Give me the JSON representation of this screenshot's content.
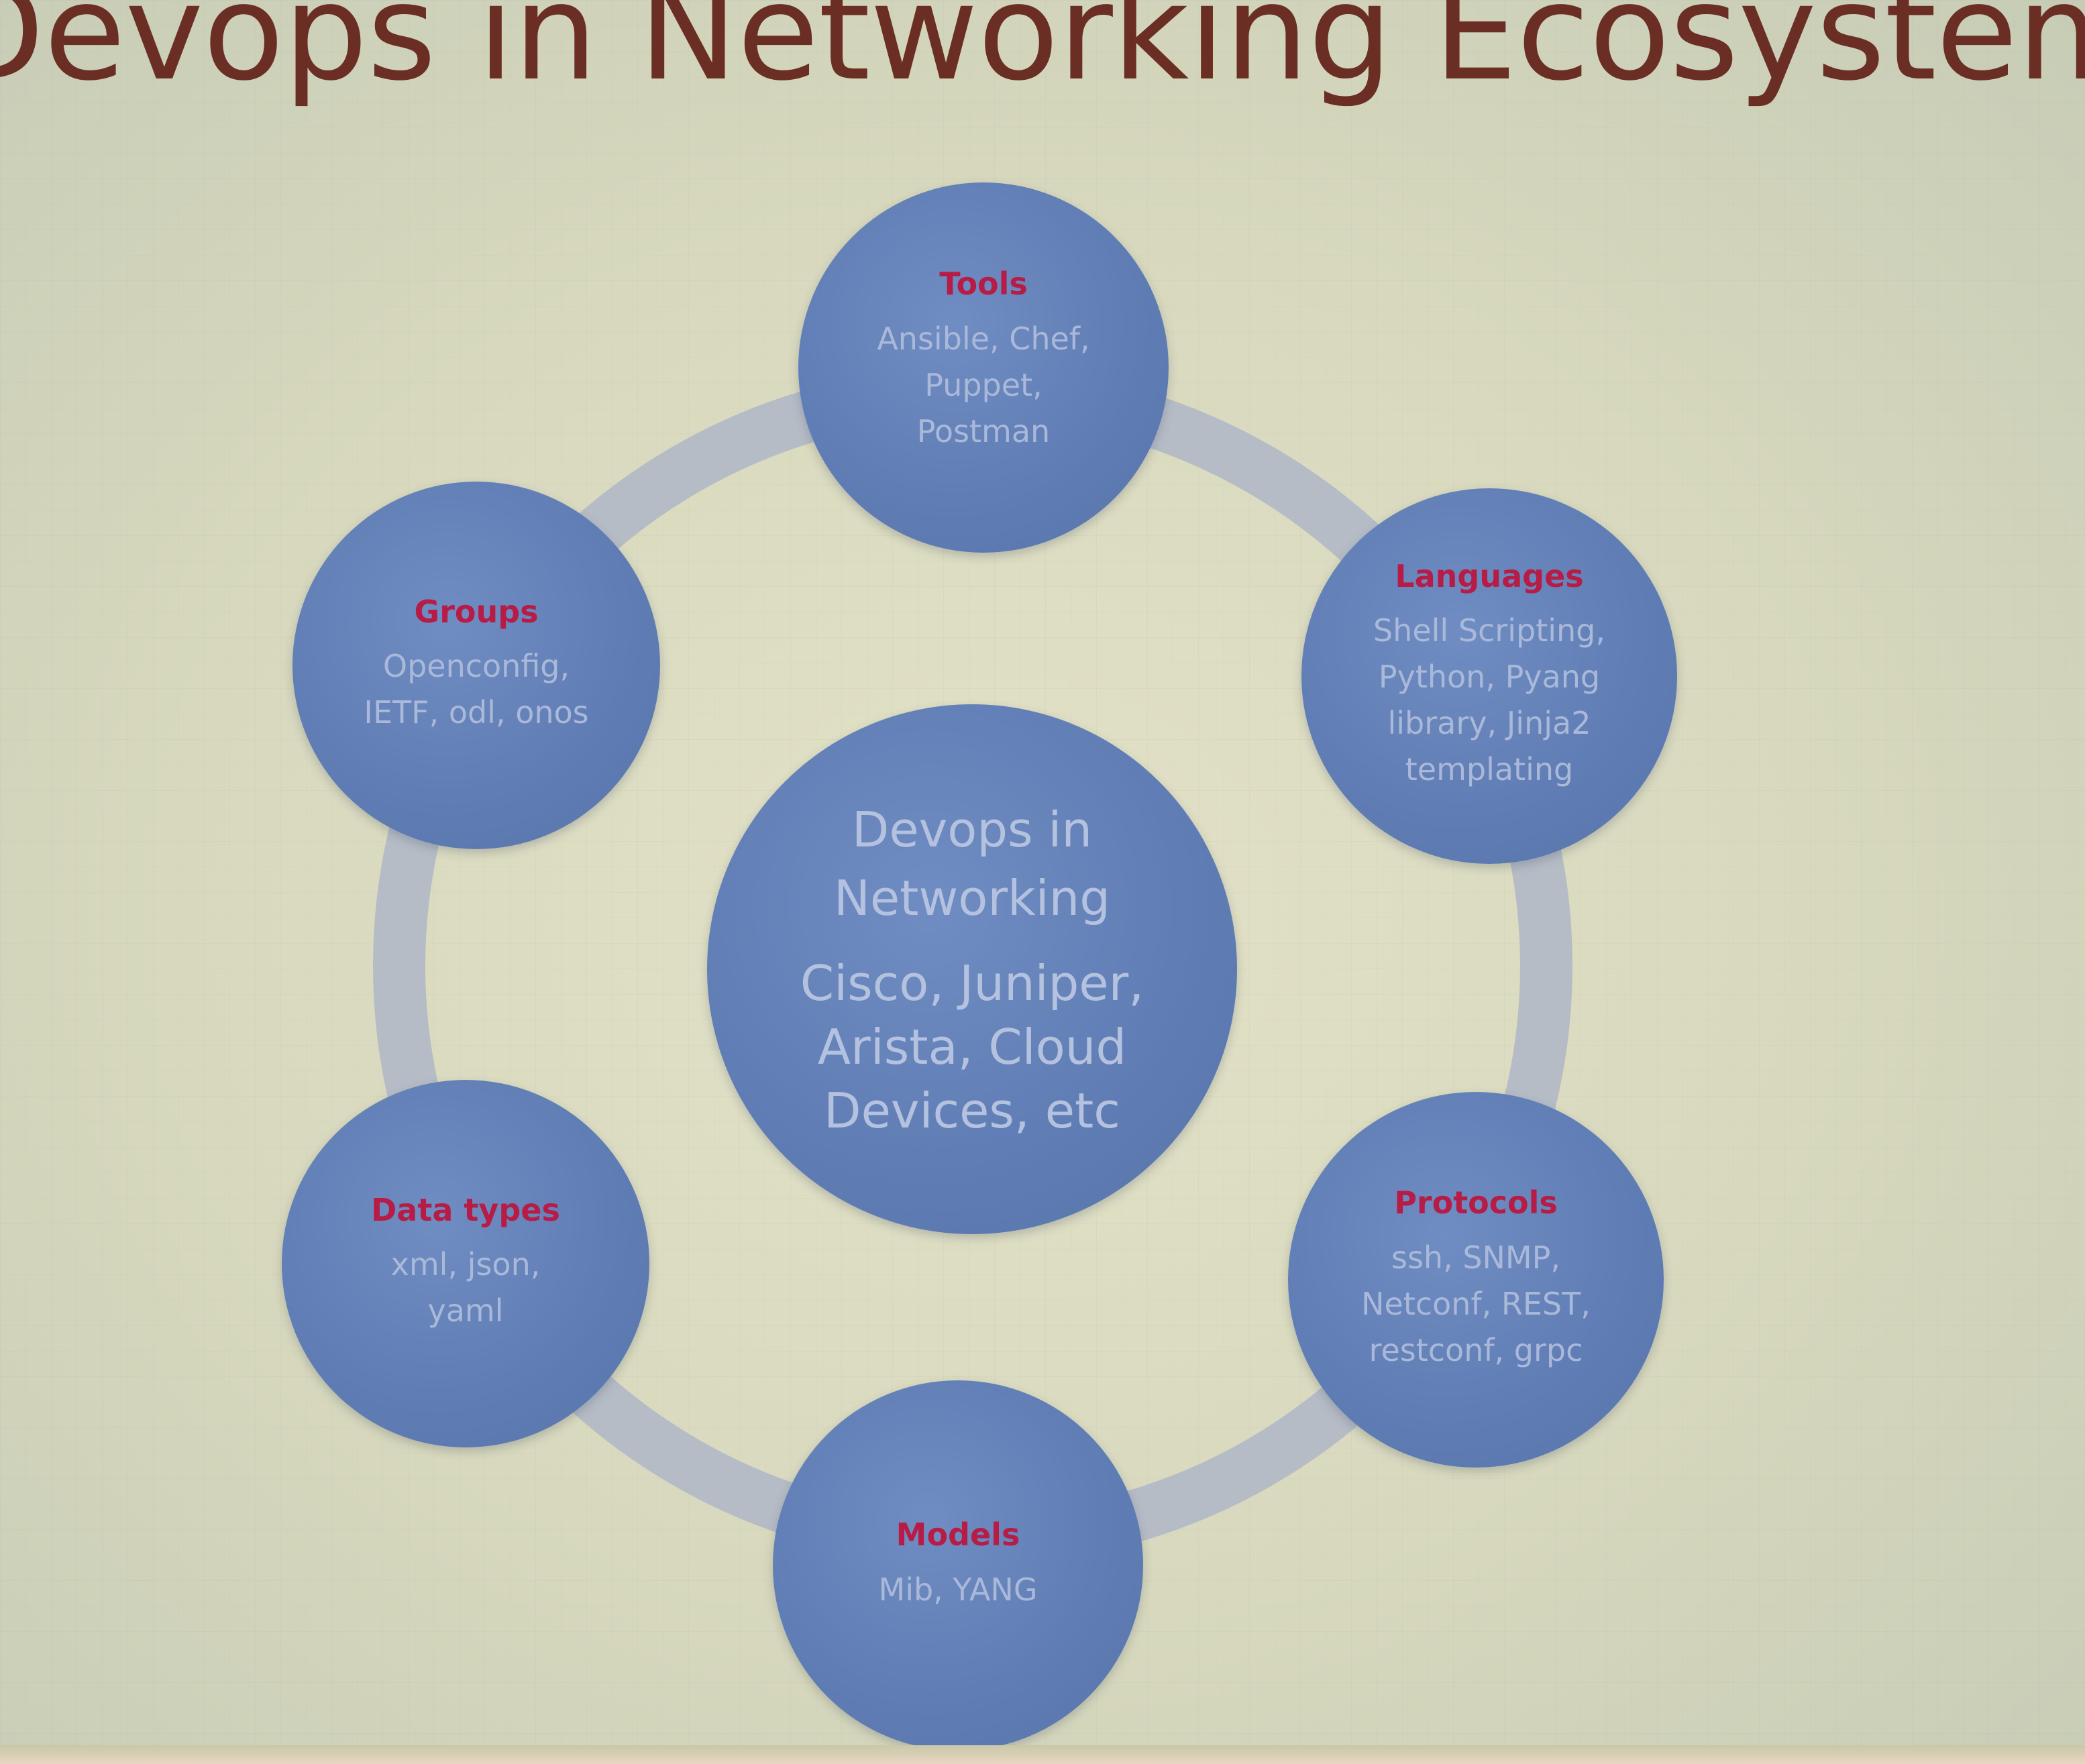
{
  "title": "Devops in Networking Ecosystem",
  "center": {
    "title": "Devops in\nNetworking",
    "description": "Cisco, Juniper,\nArista, Cloud\nDevices, etc"
  },
  "nodes": [
    {
      "label": "Tools",
      "description": "Ansible, Chef,\nPuppet,\nPostman"
    },
    {
      "label": "Languages",
      "description": "Shell Scripting,\nPython, Pyang\nlibrary, Jinja2\ntemplating"
    },
    {
      "label": "Protocols",
      "description": "ssh, SNMP,\nNetconf, REST,\nrestconf, grpc"
    },
    {
      "label": "Models",
      "description": "Mib, YANG"
    },
    {
      "label": "Data types",
      "description": "xml, json,\nyaml"
    },
    {
      "label": "Groups",
      "description": "Openconfig,\nIETF, odl, onos"
    }
  ],
  "colors": {
    "title": "#6b2e24",
    "node_fill": "#5f7db4",
    "node_label": "#b71c46",
    "node_text": "#aab8d9",
    "ring": "#b5bcc6",
    "background": "#d8d9bf"
  }
}
